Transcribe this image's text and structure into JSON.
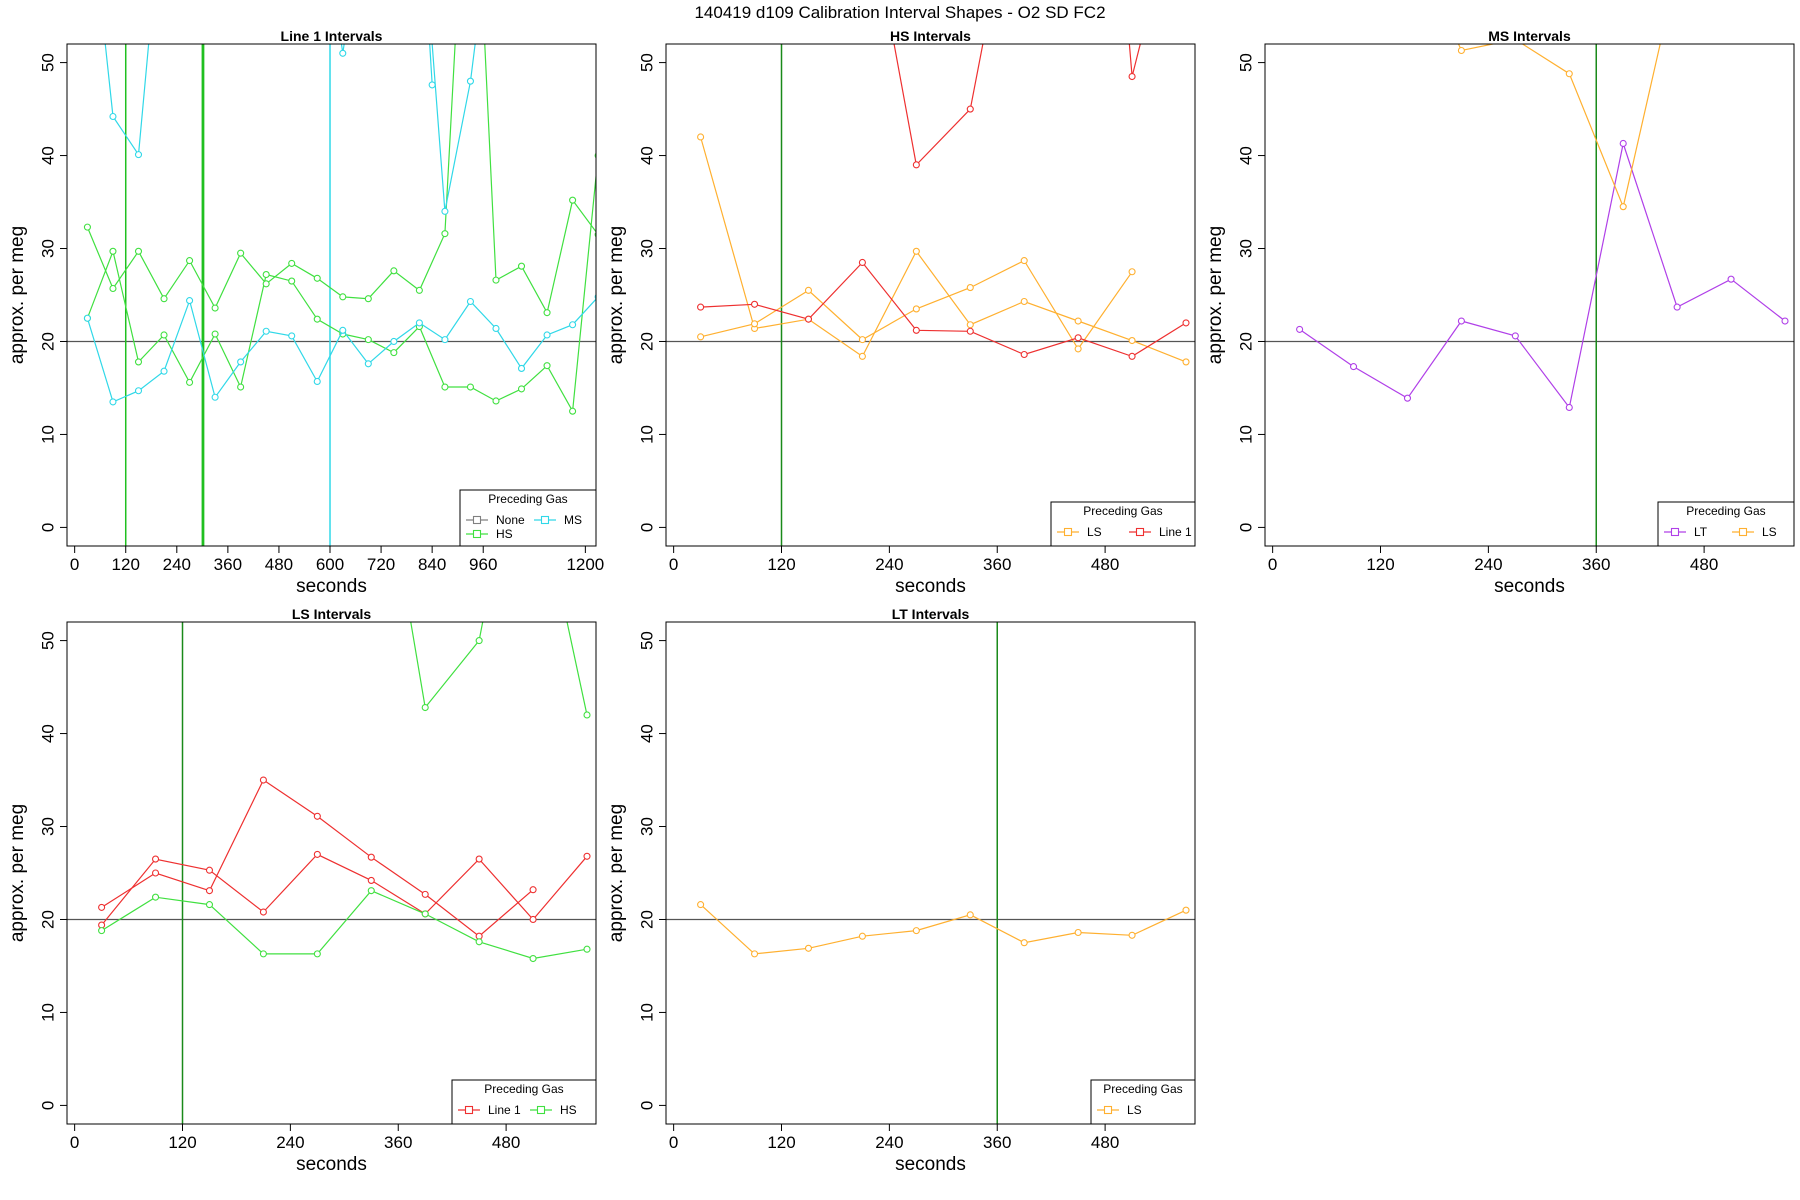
{
  "figure": {
    "title": "140419   d109   Calibration Interval Shapes - O2 SD FC2"
  },
  "chart_data": [
    {
      "type": "line",
      "title": "Line 1 Intervals",
      "xlabel": "seconds",
      "ylabel": "approx. per meg",
      "xlim": [
        -18,
        1225
      ],
      "ylim": [
        -2,
        52
      ],
      "x_ticks": [
        0,
        120,
        240,
        360,
        480,
        600,
        720,
        840,
        960,
        1200
      ],
      "x_tick_labels": [
        "0",
        "120",
        "240",
        "360",
        "480",
        "600",
        "720",
        "840",
        "960",
        "1200"
      ],
      "y_ticks": [
        0,
        10,
        20,
        30,
        40,
        50
      ],
      "hlines": [
        20
      ],
      "vlines": [
        {
          "x": 120,
          "color": "#20c020"
        },
        {
          "x": 300,
          "color": "#20c020"
        },
        {
          "x": 303,
          "color": "#20c020"
        },
        {
          "x": 600,
          "color": "#30d8e8"
        }
      ],
      "legend": {
        "title": "Preceding Gas",
        "position": "bottom-right",
        "entries": [
          {
            "label": "None",
            "color": "#808080"
          },
          {
            "label": "MS",
            "color": "#30d8e8"
          },
          {
            "label": "HS",
            "color": "#40e040"
          }
        ]
      },
      "series": [
        {
          "color": "#40e040",
          "x": [
            30,
            90,
            150,
            210,
            270,
            330,
            390,
            450,
            510,
            570,
            630,
            690,
            750,
            810,
            870,
            930,
            990,
            1050,
            1110,
            1170,
            1230
          ],
          "y": [
            22.5,
            29.7,
            17.8,
            20.7,
            15.6,
            20.8,
            15.1,
            27.2,
            26.5,
            22.4,
            20.8,
            20.2,
            18.8,
            21.6,
            15.1,
            15.1,
            13.6,
            14.9,
            17.4,
            12.5,
            40.0
          ]
        },
        {
          "color": "#40e040",
          "x": [
            30,
            90,
            150,
            210,
            270,
            330,
            390,
            450,
            510,
            570,
            630,
            690,
            750,
            810,
            870,
            915,
            945,
            990,
            1050,
            1110,
            1170,
            1230
          ],
          "y": [
            32.3,
            25.7,
            29.7,
            24.6,
            28.7,
            23.6,
            29.5,
            26.2,
            28.4,
            26.8,
            24.8,
            24.6,
            27.6,
            25.5,
            31.6,
            70.0,
            70.0,
            26.6,
            28.1,
            23.1,
            35.2,
            31.5
          ]
        },
        {
          "color": "#30d8e8",
          "x": [
            30,
            90,
            150,
            210,
            270,
            330,
            390,
            450,
            510,
            570,
            630,
            690,
            750,
            810,
            870,
            930,
            990,
            1050,
            1110,
            1170,
            1230
          ],
          "y": [
            22.5,
            13.5,
            14.7,
            16.8,
            24.4,
            14.0,
            17.8,
            21.1,
            20.6,
            15.7,
            21.2,
            17.6,
            20.0,
            22.0,
            20.2,
            24.3,
            21.4,
            17.1,
            20.7,
            21.8,
            24.8
          ]
        },
        {
          "color": "#30d8e8",
          "x": [
            30,
            90,
            150,
            210,
            570,
            630,
            690,
            810,
            870,
            930,
            990
          ],
          "y": [
            70.0,
            44.2,
            40.1,
            70.0,
            70.0,
            51.0,
            70.0,
            70.0,
            34.0,
            48.0,
            70.0
          ]
        },
        {
          "color": "#30d8e8",
          "x": [
            810,
            840
          ],
          "y": [
            70.0,
            47.6
          ]
        }
      ]
    },
    {
      "type": "line",
      "title": "HS Intervals",
      "xlabel": "seconds",
      "ylabel": "approx. per meg",
      "xlim": [
        -8.5,
        580
      ],
      "ylim": [
        -2,
        52
      ],
      "x_ticks": [
        0,
        120,
        240,
        360,
        480
      ],
      "x_tick_labels": [
        "0",
        "120",
        "240",
        "360",
        "480"
      ],
      "y_ticks": [
        0,
        10,
        20,
        30,
        40,
        50
      ],
      "hlines": [
        20
      ],
      "vlines": [
        {
          "x": 120,
          "color": "#1a8a1a"
        }
      ],
      "legend": {
        "title": "Preceding Gas",
        "position": "bottom-right",
        "entries": [
          {
            "label": "LS",
            "color": "#ffb030"
          },
          {
            "label": "Line 1",
            "color": "#ee3030"
          }
        ]
      },
      "series": [
        {
          "color": "#ffb030",
          "x": [
            30,
            90,
            150,
            210,
            270,
            330,
            390,
            450,
            510,
            570
          ],
          "y": [
            42.0,
            21.4,
            22.4,
            18.4,
            29.7,
            21.8,
            24.3,
            22.2,
            20.1,
            17.8
          ]
        },
        {
          "color": "#ffb030",
          "x": [
            30,
            90,
            150,
            210,
            270,
            330,
            390,
            450,
            510
          ],
          "y": [
            20.5,
            21.9,
            25.5,
            20.2,
            23.5,
            25.8,
            28.7,
            19.2,
            27.5
          ]
        },
        {
          "color": "#ee3030",
          "x": [
            30,
            90,
            150,
            210,
            270,
            330,
            390,
            450,
            510,
            570
          ],
          "y": [
            23.7,
            24.0,
            22.4,
            28.5,
            21.2,
            21.1,
            18.6,
            20.4,
            18.4,
            22.0
          ]
        },
        {
          "color": "#ee3030",
          "x": [
            230,
            270,
            330,
            360,
            500,
            510,
            540
          ],
          "y": [
            60.0,
            39.0,
            45.0,
            60.0,
            60.0,
            48.5,
            60.0
          ]
        }
      ]
    },
    {
      "type": "line",
      "title": "MS Intervals",
      "xlabel": "seconds",
      "ylabel": "approx. per meg",
      "xlim": [
        -8.5,
        580
      ],
      "ylim": [
        -2,
        52
      ],
      "x_ticks": [
        0,
        120,
        240,
        360,
        480
      ],
      "x_tick_labels": [
        "0",
        "120",
        "240",
        "360",
        "480"
      ],
      "y_ticks": [
        0,
        10,
        20,
        30,
        40,
        50
      ],
      "hlines": [
        20
      ],
      "vlines": [
        {
          "x": 360,
          "color": "#1a8a1a"
        }
      ],
      "legend": {
        "title": "Preceding Gas",
        "position": "bottom-right",
        "entries": [
          {
            "label": "LT",
            "color": "#b040e8"
          },
          {
            "label": "LS",
            "color": "#ffb030"
          }
        ]
      },
      "series": [
        {
          "color": "#b040e8",
          "x": [
            30,
            90,
            150,
            210,
            270,
            330,
            390,
            450,
            510,
            570
          ],
          "y": [
            21.3,
            17.3,
            13.9,
            22.2,
            20.6,
            12.9,
            41.3,
            23.7,
            26.7,
            22.2
          ]
        },
        {
          "color": "#ffb030",
          "x": [
            170,
            210,
            270,
            330,
            390,
            450
          ],
          "y": [
            60.0,
            51.3,
            52.5,
            48.8,
            34.5,
            60.0
          ]
        }
      ]
    },
    {
      "type": "line",
      "title": "LS Intervals",
      "xlabel": "seconds",
      "ylabel": "approx. per meg",
      "xlim": [
        -8.5,
        580
      ],
      "ylim": [
        -2,
        52
      ],
      "x_ticks": [
        0,
        120,
        240,
        360,
        480
      ],
      "x_tick_labels": [
        "0",
        "120",
        "240",
        "360",
        "480"
      ],
      "y_ticks": [
        0,
        10,
        20,
        30,
        40,
        50
      ],
      "hlines": [
        20
      ],
      "vlines": [
        {
          "x": 120,
          "color": "#1a8a1a"
        }
      ],
      "legend": {
        "title": "Preceding Gas",
        "position": "bottom-right",
        "entries": [
          {
            "label": "Line 1",
            "color": "#ee3030"
          },
          {
            "label": "HS",
            "color": "#40e040"
          }
        ]
      },
      "series": [
        {
          "color": "#ee3030",
          "x": [
            30,
            90,
            150,
            210,
            270,
            330,
            390,
            450,
            510
          ],
          "y": [
            21.3,
            25.0,
            23.1,
            35.0,
            31.1,
            26.7,
            22.7,
            18.2,
            23.2
          ]
        },
        {
          "color": "#ee3030",
          "x": [
            30,
            90,
            150,
            210,
            270,
            330,
            390,
            450,
            510,
            570
          ],
          "y": [
            19.4,
            26.5,
            25.3,
            20.8,
            27.0,
            24.2,
            20.6,
            26.5,
            20.0,
            26.8
          ]
        },
        {
          "color": "#40e040",
          "x": [
            30,
            90,
            150,
            210,
            270,
            330,
            390,
            450,
            510,
            570
          ],
          "y": [
            18.8,
            22.4,
            21.6,
            16.3,
            16.3,
            23.1,
            20.6,
            17.6,
            15.8,
            16.8
          ]
        },
        {
          "color": "#40e040",
          "x": [
            360,
            390,
            450,
            470,
            530,
            570
          ],
          "y": [
            60.0,
            42.8,
            50.0,
            60.0,
            60.0,
            42.0
          ]
        }
      ]
    },
    {
      "type": "line",
      "title": "LT Intervals",
      "xlabel": "seconds",
      "ylabel": "approx. per meg",
      "xlim": [
        -8.5,
        580
      ],
      "ylim": [
        -2,
        52
      ],
      "x_ticks": [
        0,
        120,
        240,
        360,
        480
      ],
      "x_tick_labels": [
        "0",
        "120",
        "240",
        "360",
        "480"
      ],
      "y_ticks": [
        0,
        10,
        20,
        30,
        40,
        50
      ],
      "hlines": [
        20
      ],
      "vlines": [
        {
          "x": 360,
          "color": "#1a8a1a"
        }
      ],
      "legend": {
        "title": "Preceding Gas",
        "position": "bottom-right",
        "entries": [
          {
            "label": "LS",
            "color": "#ffb030"
          }
        ]
      },
      "series": [
        {
          "color": "#ffb030",
          "x": [
            30,
            90,
            150,
            210,
            270,
            330,
            390,
            450,
            510,
            570
          ],
          "y": [
            21.6,
            16.3,
            16.9,
            18.2,
            18.8,
            20.5,
            17.5,
            18.6,
            18.3,
            21.0
          ]
        }
      ]
    }
  ]
}
